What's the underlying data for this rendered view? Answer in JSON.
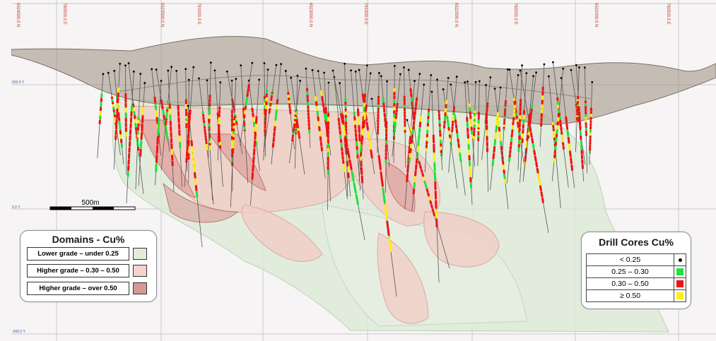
{
  "coordinates": {
    "eastings": [
      "6524000.0 N",
      "780500.0 E",
      "6523500.0 N",
      "781000.0 E",
      "6523000.0 N",
      "781500.0 E",
      "6522500.0 N",
      "782000.0 E",
      "6522000.0 N",
      "782500.0 E"
    ],
    "levels": [
      "500.0 Y",
      "0.0 Y",
      "-500.0 Y"
    ]
  },
  "scale_bar": {
    "label": "500m"
  },
  "domains_legend": {
    "title": "Domains - Cu%",
    "items": [
      {
        "label": "Lower grade – under 0.25",
        "color": "#e2ecd9"
      },
      {
        "label": "Higher grade – 0.30 – 0.50",
        "color": "#f3d3cc"
      },
      {
        "label": "Higher grade – over 0.50",
        "color": "#d79793"
      }
    ]
  },
  "drill_legend": {
    "title": "Drill Cores Cu%",
    "items": [
      {
        "label": "< 0.25",
        "symbol": "dot",
        "color": "#000000"
      },
      {
        "label": "0.25  –  0.30",
        "symbol": "square",
        "color": "#1ee33a"
      },
      {
        "label": "0.30  –  0.50",
        "symbol": "square",
        "color": "#ee1212"
      },
      {
        "label": "≥ 0.50",
        "symbol": "square",
        "color": "#ffee10"
      }
    ]
  }
}
